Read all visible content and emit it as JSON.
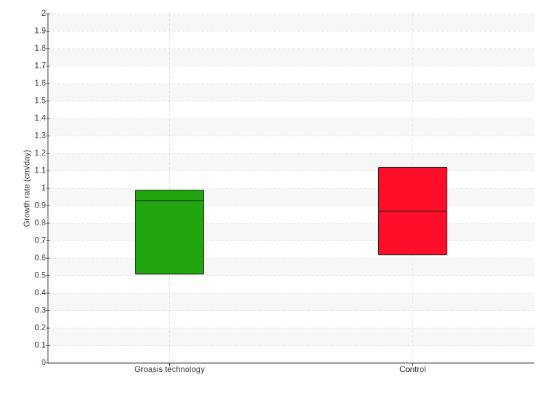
{
  "chart_data": {
    "type": "box",
    "y_label": "Growth rate (cm/day)",
    "categories": [
      "Groasis technology",
      "Control"
    ],
    "q1": [
      0.51,
      0.62
    ],
    "median": [
      0.93,
      0.87
    ],
    "q3": [
      0.99,
      1.12
    ],
    "colors": [
      "#21a60f",
      "#ff0e2a"
    ],
    "ylim": [
      0,
      2
    ],
    "yticks": [
      0,
      0.1,
      0.2,
      0.3,
      0.4,
      0.5,
      0.6,
      0.7,
      0.8,
      0.9,
      1,
      1.1,
      1.2,
      1.3,
      1.4,
      1.5,
      1.6,
      1.7,
      1.8,
      1.9,
      2
    ],
    "grid": true
  }
}
